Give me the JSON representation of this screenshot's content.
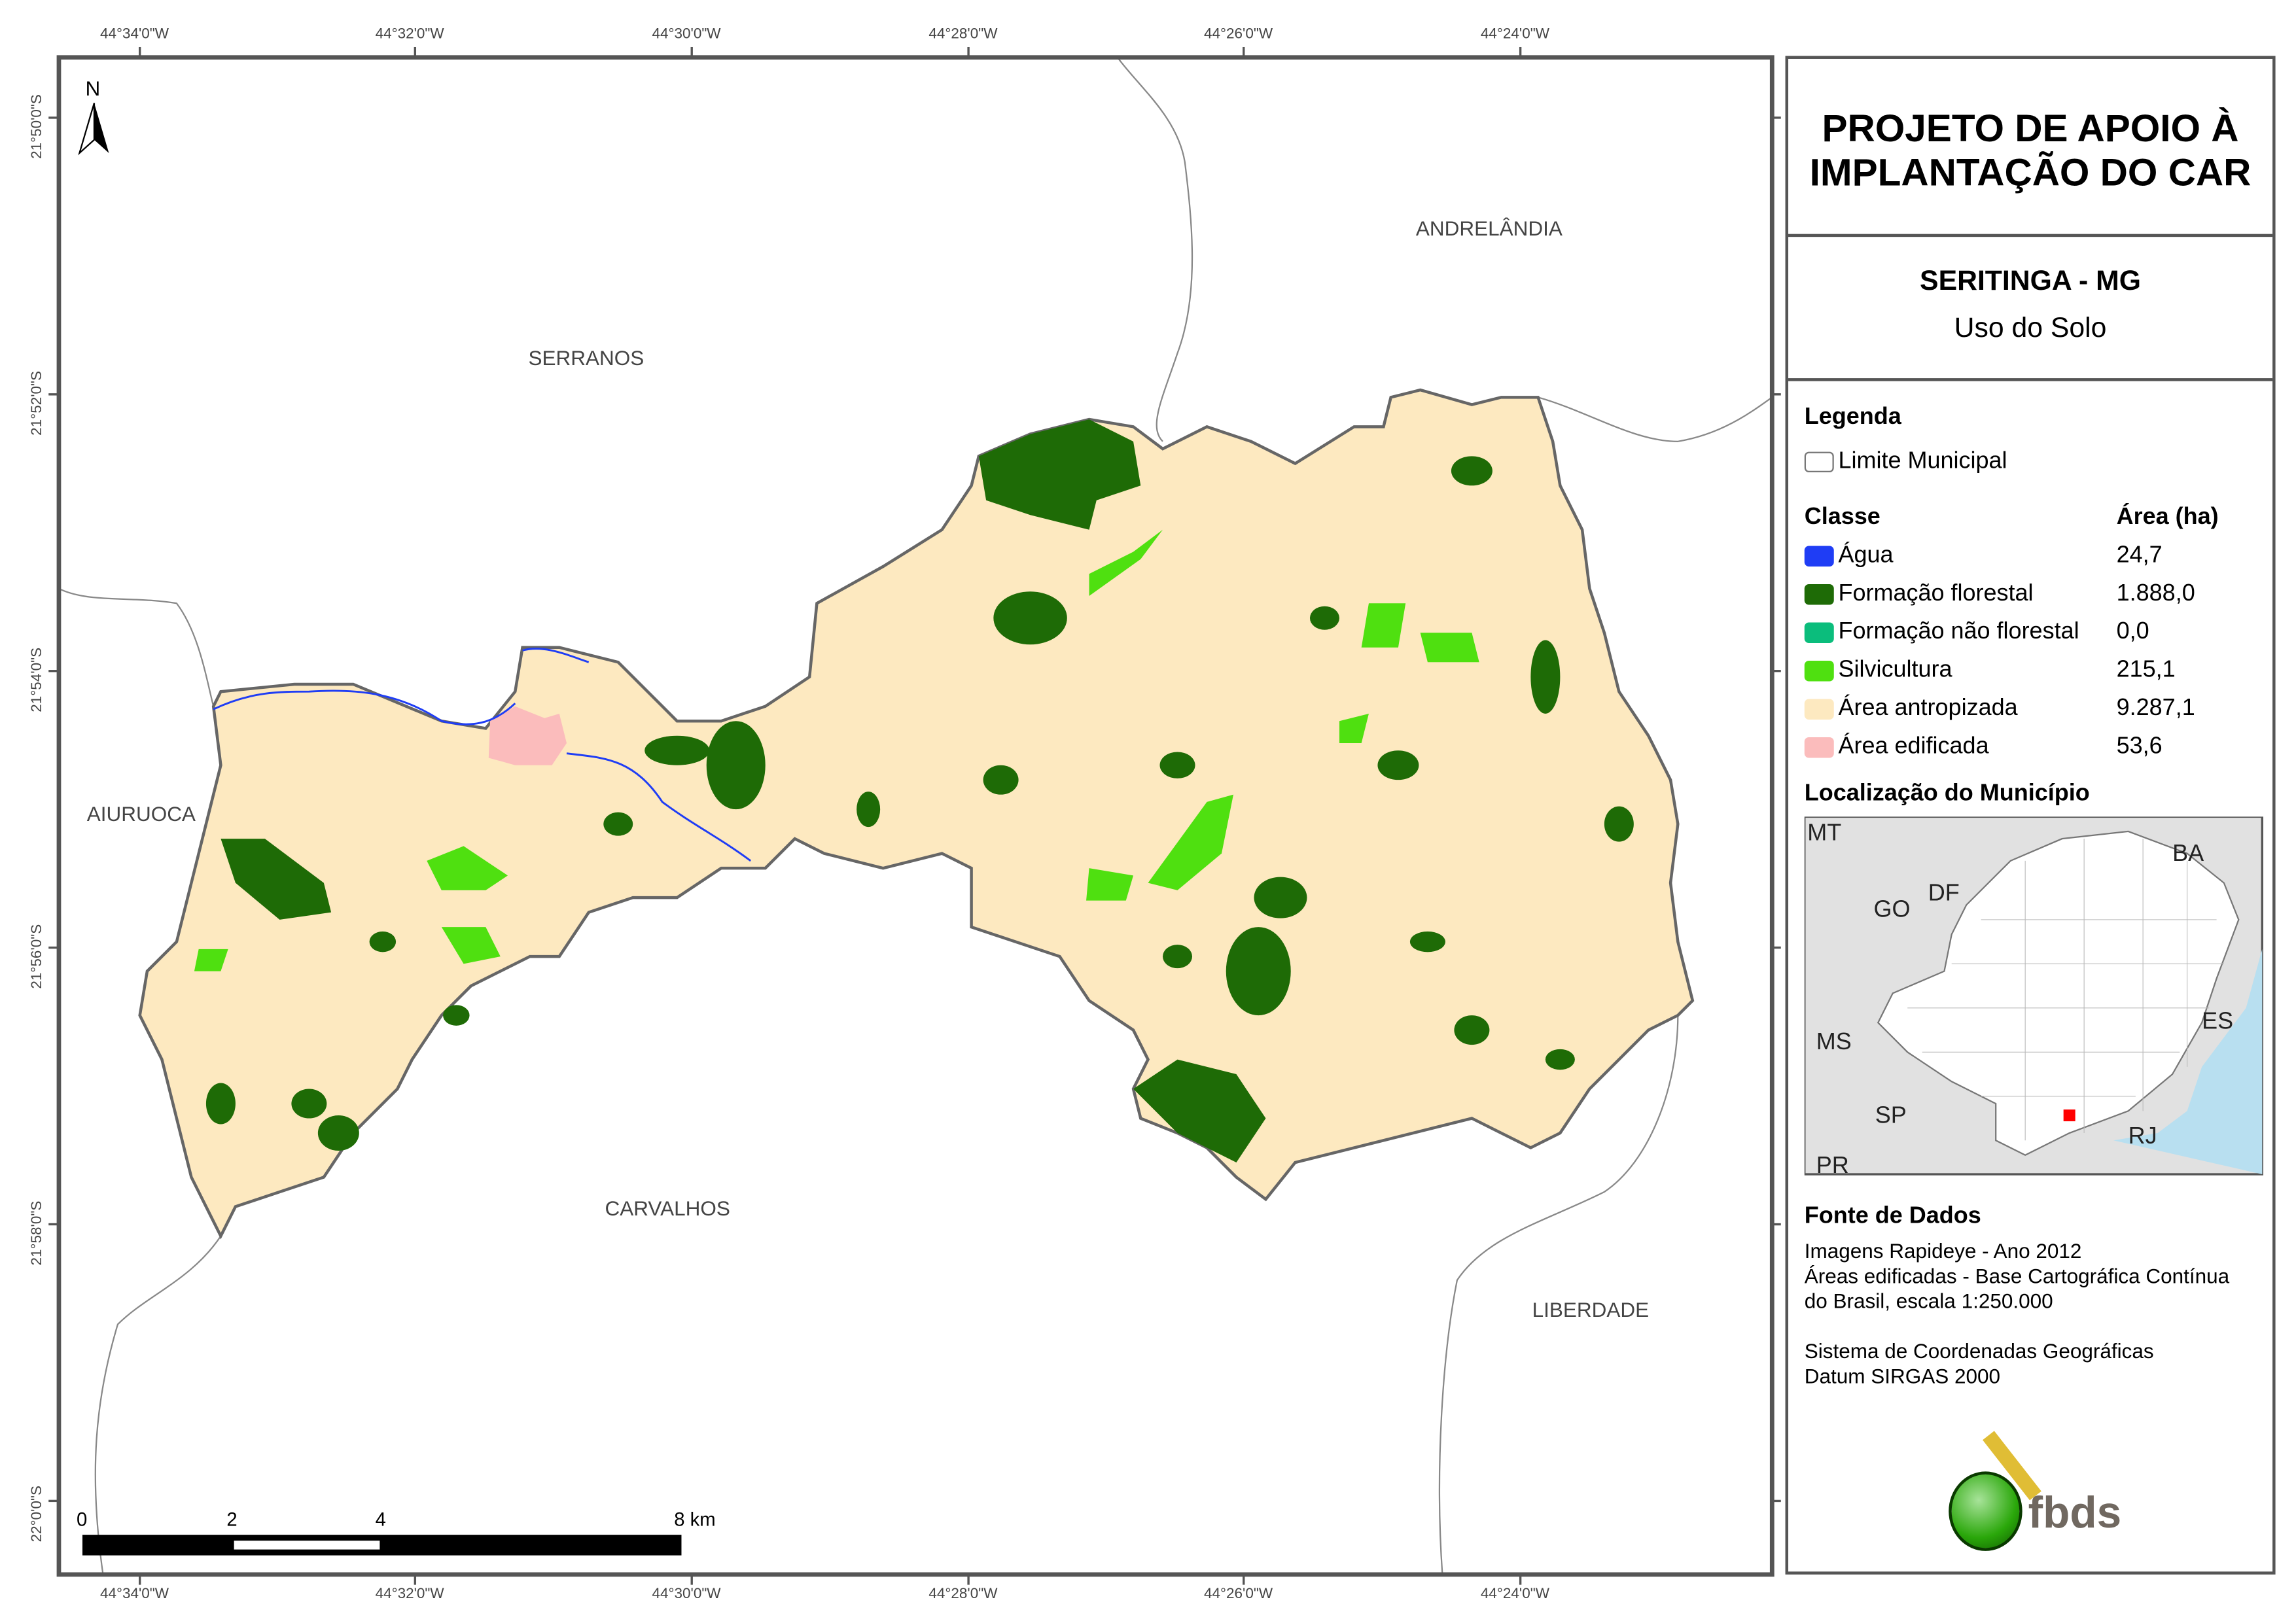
{
  "map": {
    "longitude_labels": [
      "44°34'0\"W",
      "44°32'0\"W",
      "44°30'0\"W",
      "44°28'0\"W",
      "44°26'0\"W",
      "44°24'0\"W"
    ],
    "latitude_labels": [
      "21°50'0\"S",
      "21°52'0\"S",
      "21°54'0\"S",
      "21°56'0\"S",
      "21°58'0\"S",
      "22°0'0\"S"
    ],
    "north_arrow": "N",
    "neighbors": [
      "ANDRELÂNDIA",
      "SERRANOS",
      "AIURUOCA",
      "CARVALHOS",
      "LIBERDADE"
    ],
    "scale_bar": {
      "labels": [
        "0",
        "2",
        "4",
        "8 km"
      ]
    }
  },
  "panel": {
    "title": "PROJETO DE APOIO À IMPLANTAÇÃO DO CAR",
    "municipality": "SERITINGA - MG",
    "subtitle": "Uso do Solo",
    "legend_title": "Legenda",
    "boundary_label": "Limite Municipal",
    "class_header": "Classe",
    "area_header": "Área (ha)",
    "classes": [
      {
        "label": "Água",
        "area": "24,7",
        "color": "#1f3df5"
      },
      {
        "label": "Formação florestal",
        "area": "1.888,0",
        "color": "#1e6b06"
      },
      {
        "label": "Formação não florestal",
        "area": "0,0",
        "color": "#0bbd7c"
      },
      {
        "label": "Silvicultura",
        "area": "215,1",
        "color": "#4fe010"
      },
      {
        "label": "Área antropizada",
        "area": "9.287,1",
        "color": "#fde9c0"
      },
      {
        "label": "Área edificada",
        "area": "53,6",
        "color": "#fbbcbc"
      }
    ],
    "location_title": "Localização do Município",
    "inset_labels": [
      "MT",
      "BA",
      "GO",
      "DF",
      "MS",
      "ES",
      "SP",
      "RJ",
      "PR"
    ],
    "source_title": "Fonte de Dados",
    "source_lines": [
      "Imagens Rapideye - Ano 2012",
      "Áreas edificadas - Base Cartográfica Contínua",
      "do Brasil, escala 1:250.000"
    ],
    "crs_lines": [
      "Sistema de Coordenadas Geográficas",
      "Datum SIRGAS 2000"
    ],
    "logo_text": "fbds"
  }
}
